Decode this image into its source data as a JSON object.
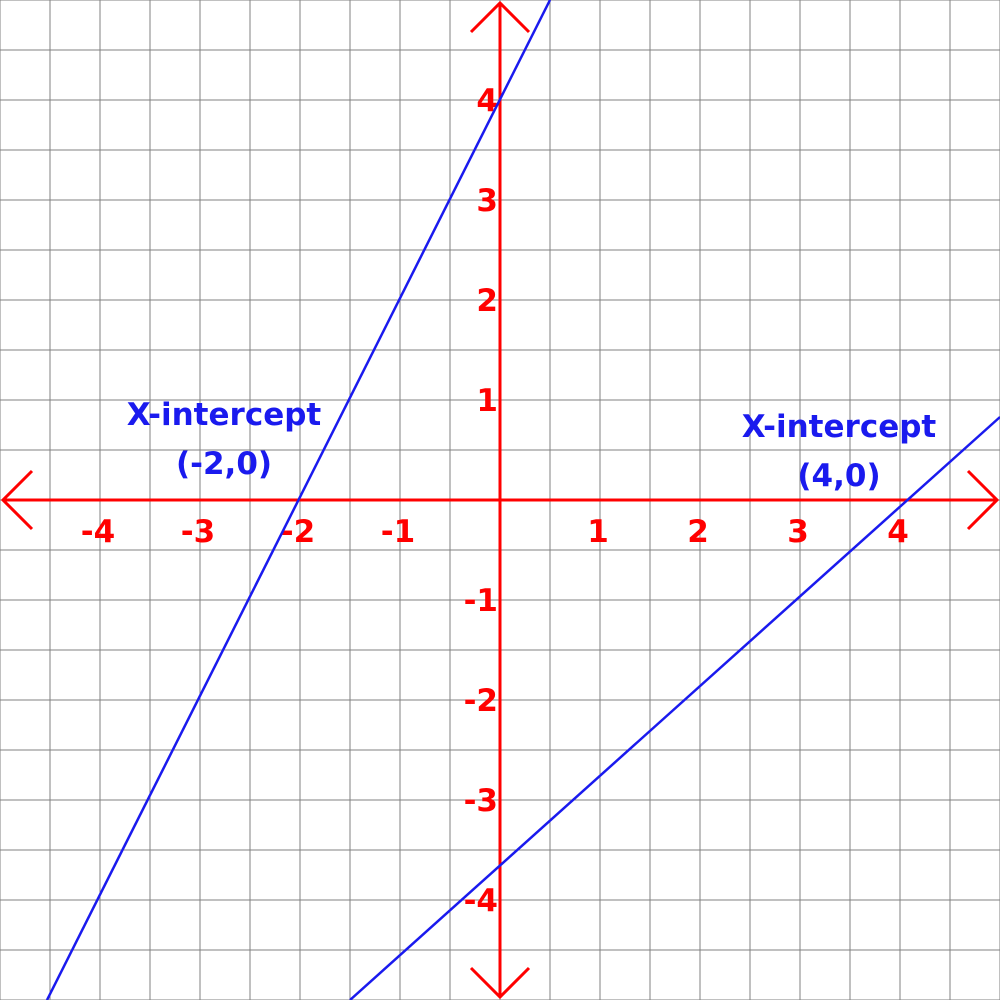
{
  "chart_data": {
    "type": "line",
    "title": "",
    "xlabel": "",
    "ylabel": "",
    "xlim": [
      -5,
      5
    ],
    "ylim": [
      -5,
      5
    ],
    "grid": true,
    "grid_step": 0.5,
    "x_ticks": [
      {
        "value": -4,
        "label": "-4"
      },
      {
        "value": -3,
        "label": "-3"
      },
      {
        "value": -2,
        "label": "-2"
      },
      {
        "value": -1,
        "label": "-1"
      },
      {
        "value": 1,
        "label": "1"
      },
      {
        "value": 2,
        "label": "2"
      },
      {
        "value": 3,
        "label": "3"
      },
      {
        "value": 4,
        "label": "4"
      }
    ],
    "y_ticks": [
      {
        "value": 4,
        "label": "4"
      },
      {
        "value": 3,
        "label": "3"
      },
      {
        "value": 2,
        "label": "2"
      },
      {
        "value": 1,
        "label": "1"
      },
      {
        "value": -1,
        "label": "-1"
      },
      {
        "value": -2,
        "label": "-2"
      },
      {
        "value": -3,
        "label": "-3"
      },
      {
        "value": -4,
        "label": "-4"
      }
    ],
    "series": [
      {
        "x": [
          -4.53,
          0.5
        ],
        "y": [
          -5.0,
          5.0
        ],
        "slope": 2,
        "intercept": 4
      },
      {
        "x": [
          -1.5,
          5.0
        ],
        "y": [
          -5.0,
          0.83
        ],
        "slope": 0.9,
        "intercept": -3.6
      }
    ],
    "annotations": [
      {
        "lines": [
          "X-intercept",
          "(-2,0)"
        ],
        "x": -2,
        "y": 0
      },
      {
        "lines": [
          "X-intercept",
          "(4,0)"
        ],
        "x": 4,
        "y": 0
      }
    ],
    "colors": {
      "axis": "#ff0000",
      "line": "#1a1aee",
      "grid": "#808080",
      "background": "#ffffff"
    }
  }
}
